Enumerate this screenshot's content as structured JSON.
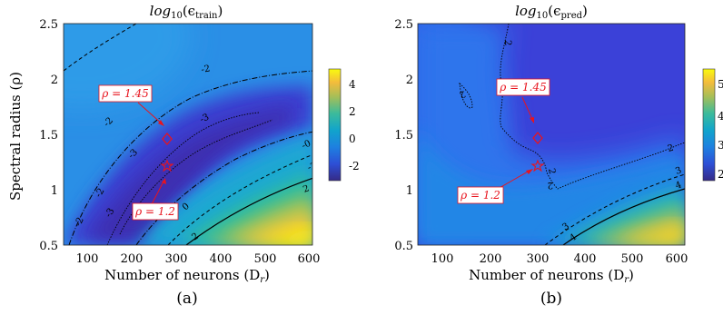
{
  "figure": {
    "panels": [
      {
        "id": "a",
        "title_main": "log",
        "title_sub": "10",
        "title_arg": "(ϵ",
        "title_arg_sub": "train",
        "title_arg_close": ")",
        "xlabel": "Number of neurons (D",
        "xlabel_sub": "r",
        "xlabel_close": ")",
        "ylabel": "Spectral radius (ρ)",
        "caption": "(a)",
        "colorbar_ticks": [
          "4",
          "2",
          "0",
          "-2"
        ],
        "annotations": [
          {
            "label": "ρ = 1.45",
            "marker": "diamond",
            "x": 300,
            "y": 1.45
          },
          {
            "label": "ρ = 1.2",
            "marker": "star",
            "x": 300,
            "y": 1.2
          }
        ],
        "contour_labels": [
          "0",
          "-2",
          "-2",
          "-3",
          "-3",
          "-2",
          "-2",
          "-3",
          "-2",
          "0",
          "-0",
          "2",
          "2"
        ]
      },
      {
        "id": "b",
        "title_main": "log",
        "title_sub": "10",
        "title_arg": "(ϵ",
        "title_arg_sub": "pred",
        "title_arg_close": ")",
        "xlabel": "Number of neurons (D",
        "xlabel_sub": "r",
        "xlabel_close": ")",
        "ylabel": "",
        "caption": "(b)",
        "colorbar_ticks": [
          "5",
          "4",
          "3",
          "2"
        ],
        "annotations": [
          {
            "label": "ρ = 1.45",
            "marker": "diamond",
            "x": 300,
            "y": 1.45
          },
          {
            "label": "ρ = 1.2",
            "marker": "star",
            "x": 300,
            "y": 1.2
          }
        ],
        "contour_labels": [
          "2",
          "2",
          "2",
          "2",
          "3",
          "4",
          "3",
          "4",
          "2"
        ]
      }
    ],
    "colors": {
      "accent_red": "#e8141e",
      "colormap": "parula"
    }
  },
  "chart_data": [
    {
      "type": "heatmap",
      "title": "log10(ϵtrain)",
      "xlabel": "Number of neurons (Dr)",
      "ylabel": "Spectral radius (ρ)",
      "xlim": [
        50,
        610
      ],
      "ylim": [
        0.5,
        2.5
      ],
      "xticks": [
        100,
        200,
        300,
        400,
        500,
        600
      ],
      "yticks": [
        0.5,
        1,
        1.5,
        2,
        2.5
      ],
      "colorbar": {
        "min": -3.2,
        "max": 5,
        "ticks": [
          -2,
          0,
          2,
          4
        ]
      },
      "contour_levels": [
        -3,
        -2,
        0,
        2
      ],
      "markers": [
        {
          "label": "ρ = 1.45",
          "x": 300,
          "y": 1.45,
          "shape": "diamond"
        },
        {
          "label": "ρ = 1.2",
          "x": 300,
          "y": 1.2,
          "shape": "pentagram"
        }
      ]
    },
    {
      "type": "heatmap",
      "title": "log10(ϵpred)",
      "xlabel": "Number of neurons (Dr)",
      "ylabel": "",
      "xlim": [
        50,
        610
      ],
      "ylim": [
        0.5,
        2.5
      ],
      "xticks": [
        100,
        200,
        300,
        400,
        500,
        600
      ],
      "yticks": [
        0.5,
        1,
        1.5,
        2,
        2.5
      ],
      "colorbar": {
        "min": 1.6,
        "max": 5.8,
        "ticks": [
          2,
          3,
          4,
          5
        ]
      },
      "contour_levels": [
        2,
        3,
        4
      ],
      "markers": [
        {
          "label": "ρ = 1.45",
          "x": 300,
          "y": 1.45,
          "shape": "diamond"
        },
        {
          "label": "ρ = 1.2",
          "x": 300,
          "y": 1.2,
          "shape": "pentagram"
        }
      ]
    }
  ]
}
